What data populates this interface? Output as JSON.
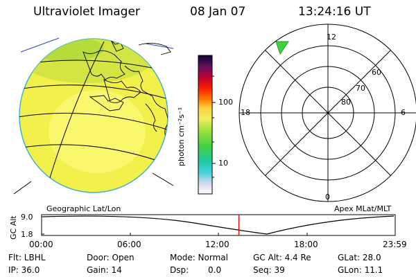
{
  "header": {
    "instrument": "Ultraviolet Imager",
    "date": "08 Jan 07",
    "time": "13:24:16 UT"
  },
  "colorbar": {
    "label": "photon cm⁻²s⁻¹",
    "tick_high": "100",
    "tick_low": "10"
  },
  "polar_plot": {
    "mlt_top": "12",
    "mlt_left": "18",
    "mlt_right": "6",
    "mlt_bottom": "0",
    "lat_60": "60",
    "lat_70": "70",
    "lat_80": "80"
  },
  "captions": {
    "left": "Geographic Lat/Lon",
    "right": "Apex MLat/MLT"
  },
  "timeline": {
    "ylabel": "GC Alt",
    "y_top": "9.0",
    "y_bottom": "1.8",
    "x_ticks": [
      "00:00",
      "06:00",
      "12:00",
      "18:00",
      "23:59"
    ],
    "current_time_fraction": 0.558
  },
  "status": {
    "flt": "Flt: LBHL",
    "door": "Door: Open",
    "mode": "Mode: Normal",
    "gc_alt": "GC Alt: 4.4 Re",
    "glat": "GLat: 28.0",
    "ip": "IP: 36.0",
    "gain": "Gain: 14",
    "dsp": "Dsp:",
    "dsp_value": "0.0",
    "seq": "Seq: 39",
    "glon": "GLon: 11.1"
  }
}
